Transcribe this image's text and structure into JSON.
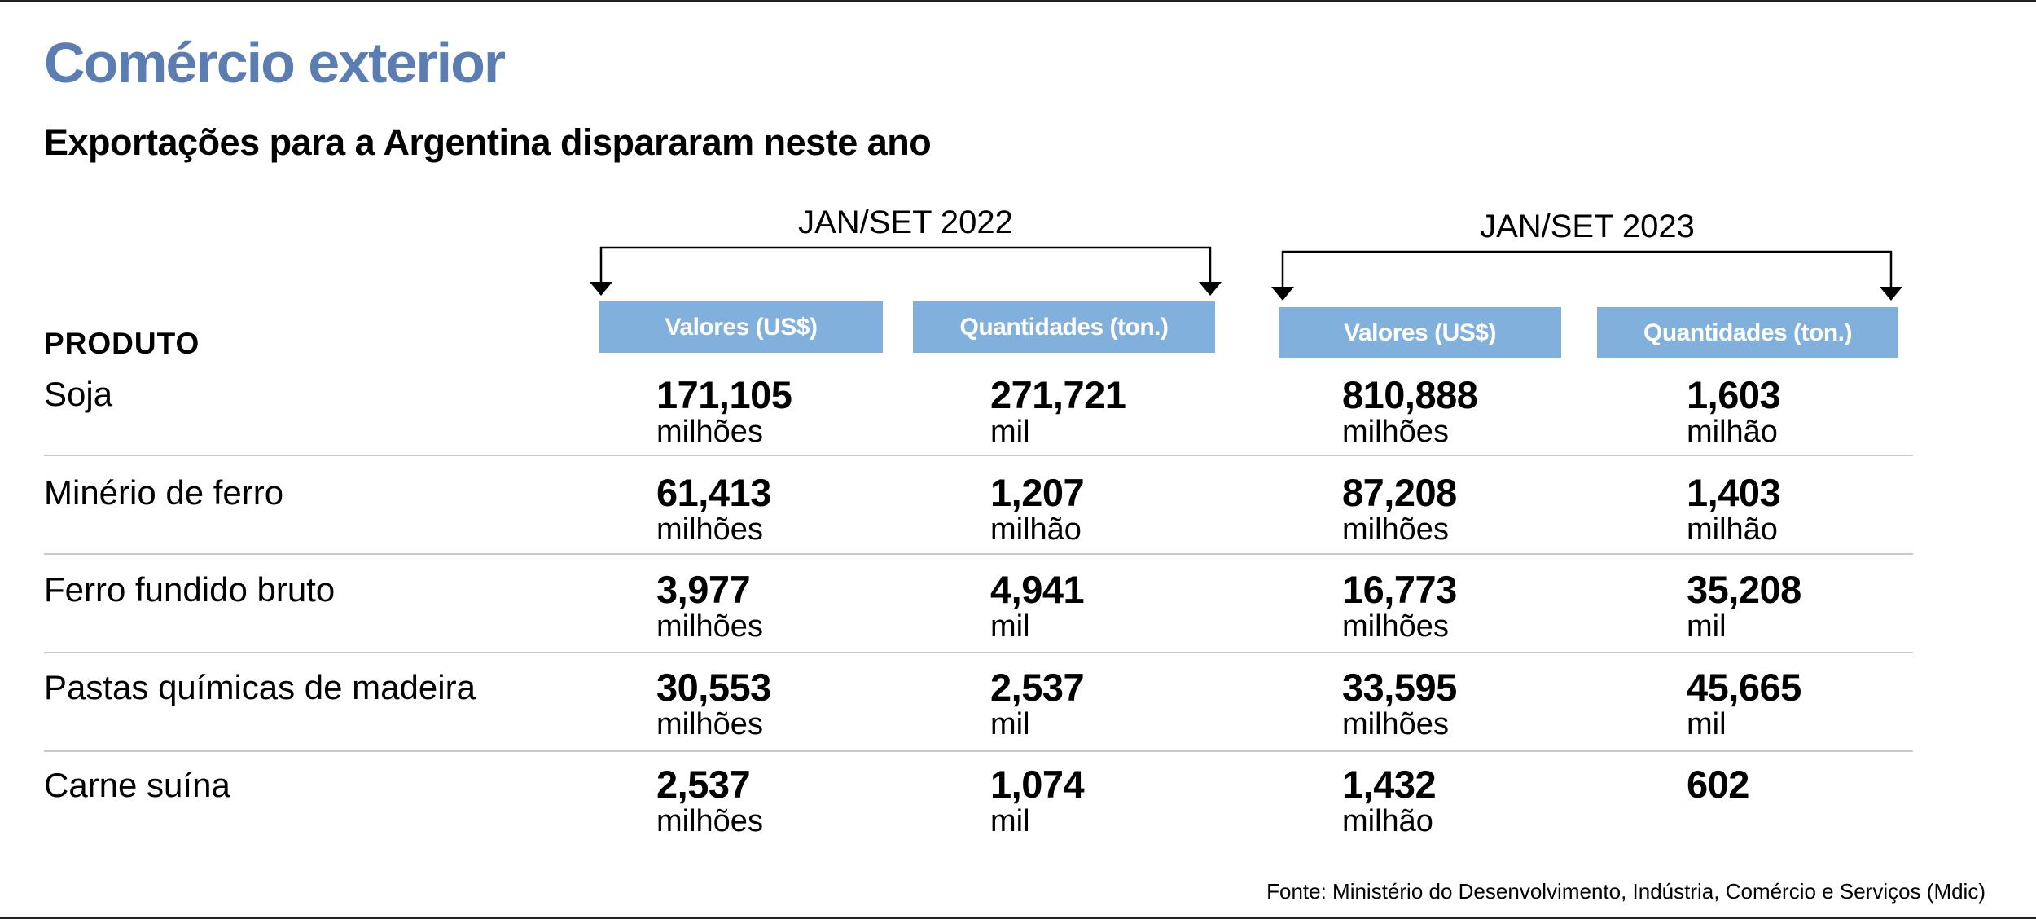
{
  "title": "Comércio exterior",
  "subtitle": "Exportações para a Argentina dispararam neste ano",
  "source": "Fonte: Ministério do Desenvolvimento, Indústria, Comércio e Serviços (Mdic)",
  "chart_data": {
    "type": "table",
    "title": "Comércio exterior",
    "subtitle": "Exportações para a Argentina dispararam neste ano",
    "row_header": "PRODUTO",
    "periods": [
      {
        "label": "JAN/SET 2022",
        "columns": [
          "Valores (US$)",
          "Quantidades (ton.)"
        ]
      },
      {
        "label": "JAN/SET 2023",
        "columns": [
          "Valores (US$)",
          "Quantidades (ton.)"
        ]
      }
    ],
    "rows": [
      {
        "product": "Soja",
        "cells": [
          {
            "value": "171,105",
            "unit": "milhões"
          },
          {
            "value": "271,721",
            "unit": "mil"
          },
          {
            "value": "810,888",
            "unit": "milhões"
          },
          {
            "value": "1,603",
            "unit": "milhão"
          }
        ]
      },
      {
        "product": "Minério de ferro",
        "cells": [
          {
            "value": "61,413",
            "unit": "milhões"
          },
          {
            "value": "1,207",
            "unit": "milhão"
          },
          {
            "value": "87,208",
            "unit": "milhões"
          },
          {
            "value": "1,403",
            "unit": "milhão"
          }
        ]
      },
      {
        "product": "Ferro fundido bruto",
        "cells": [
          {
            "value": "3,977",
            "unit": "milhões"
          },
          {
            "value": "4,941",
            "unit": "mil"
          },
          {
            "value": "16,773",
            "unit": "milhões"
          },
          {
            "value": "35,208",
            "unit": "mil"
          }
        ]
      },
      {
        "product": "Pastas químicas de madeira",
        "cells": [
          {
            "value": "30,553",
            "unit": "milhões"
          },
          {
            "value": "2,537",
            "unit": "mil"
          },
          {
            "value": "33,595",
            "unit": "milhões"
          },
          {
            "value": "45,665",
            "unit": "mil"
          }
        ]
      },
      {
        "product": "Carne suína",
        "cells": [
          {
            "value": "2,537",
            "unit": "milhões"
          },
          {
            "value": "1,074",
            "unit": "mil"
          },
          {
            "value": "1,432",
            "unit": "milhão"
          },
          {
            "value": "602",
            "unit": ""
          }
        ]
      }
    ]
  },
  "colors": {
    "title": "#5b7db1",
    "column_header_bg": "#82b0dc",
    "column_header_text": "#ffffff",
    "row_divider": "#c9c9c9"
  }
}
